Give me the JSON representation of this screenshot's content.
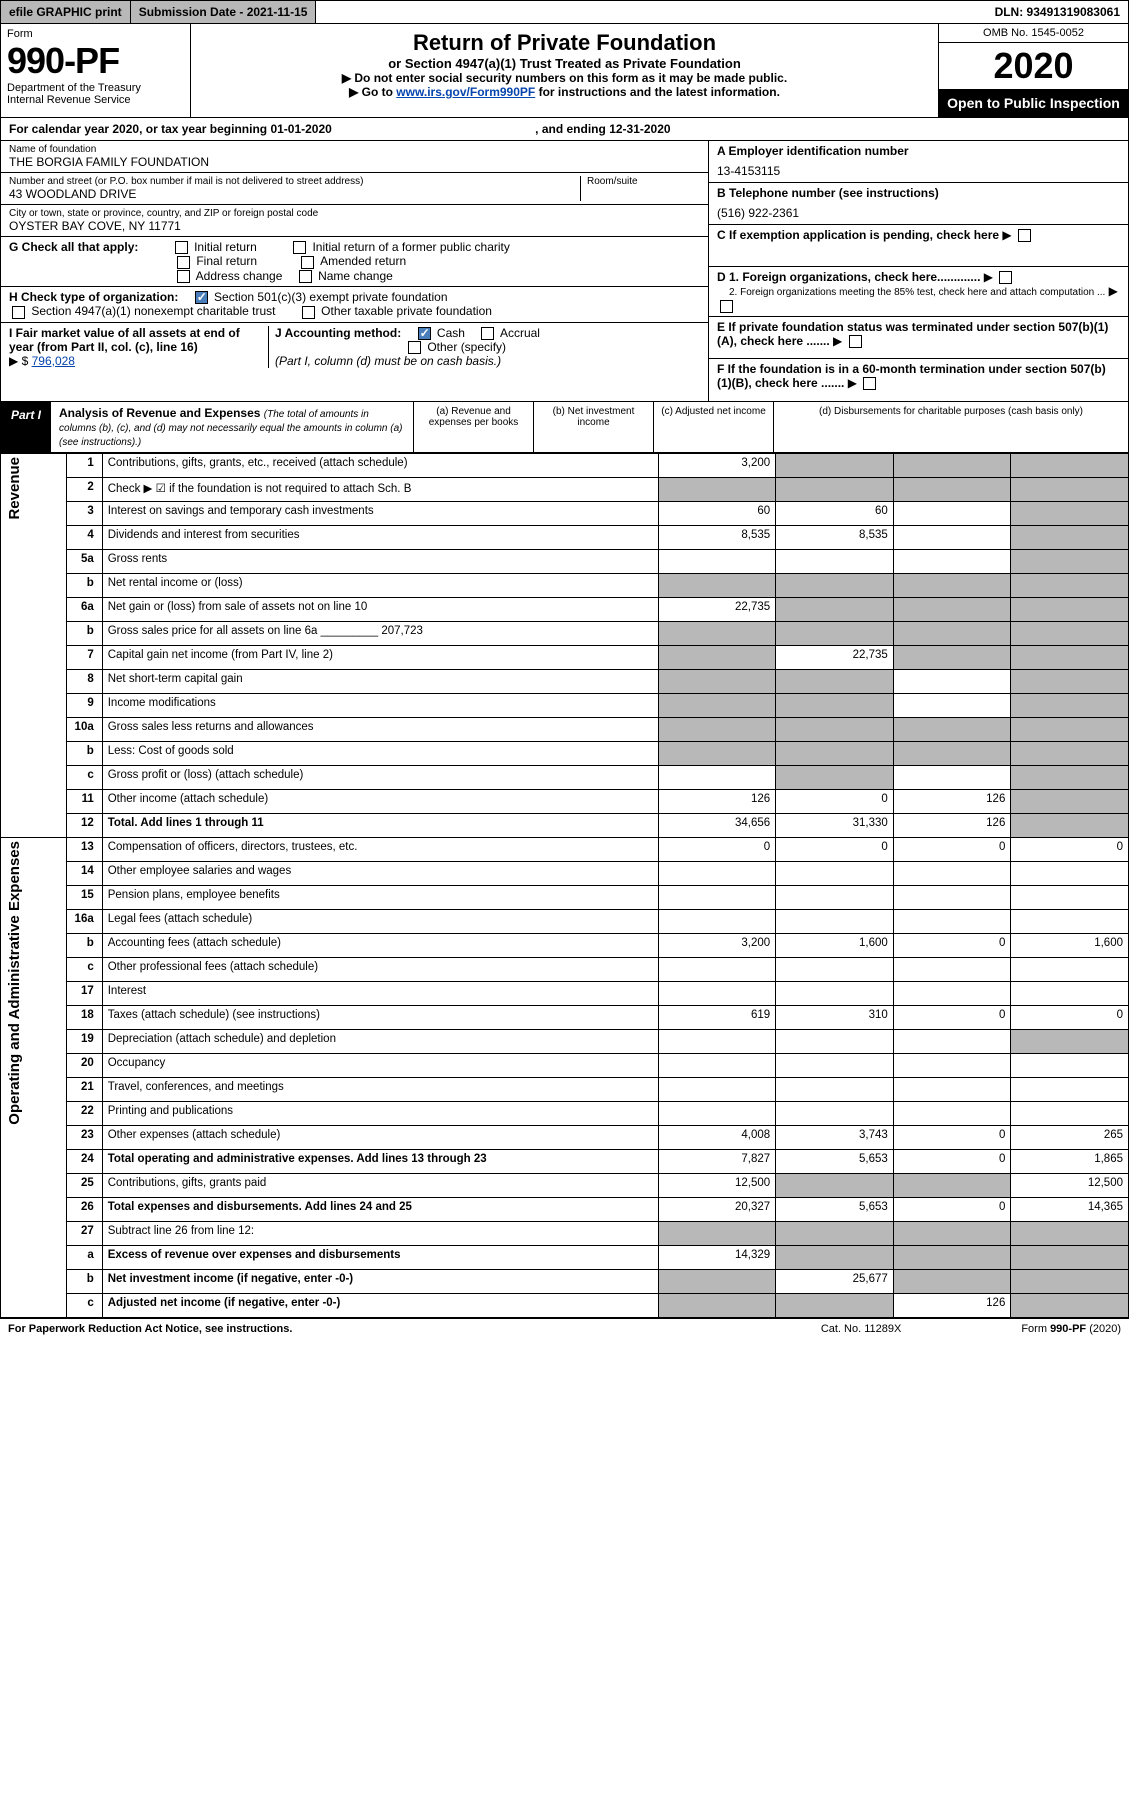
{
  "topbar": {
    "efile": "efile GRAPHIC print",
    "submission": "Submission Date - 2021-11-15",
    "dln": "DLN: 93491319083061"
  },
  "header": {
    "form_word": "Form",
    "form_number": "990-PF",
    "dept": "Department of the Treasury",
    "irs": "Internal Revenue Service",
    "title": "Return of Private Foundation",
    "subtitle": "or Section 4947(a)(1) Trust Treated as Private Foundation",
    "note1": "▶ Do not enter social security numbers on this form as it may be made public.",
    "note2_pre": "▶ Go to ",
    "note2_link": "www.irs.gov/Form990PF",
    "note2_post": " for instructions and the latest information.",
    "omb": "OMB No. 1545-0052",
    "year": "2020",
    "open": "Open to Public Inspection"
  },
  "calyear": {
    "text": "For calendar year 2020, or tax year beginning 01-01-2020",
    "ending_lbl": ", and ending",
    "ending_val": "12-31-2020"
  },
  "id": {
    "name_lbl": "Name of foundation",
    "name_val": "THE BORGIA FAMILY FOUNDATION",
    "addr_lbl": "Number and street (or P.O. box number if mail is not delivered to street address)",
    "addr_val": "43 WOODLAND DRIVE",
    "room_lbl": "Room/suite",
    "city_lbl": "City or town, state or province, country, and ZIP or foreign postal code",
    "city_val": "OYSTER BAY COVE, NY  11771",
    "a_lbl": "A Employer identification number",
    "a_val": "13-4153115",
    "b_lbl": "B Telephone number (see instructions)",
    "b_val": "(516) 922-2361",
    "c_lbl": "C If exemption application is pending, check here",
    "d1": "D 1. Foreign organizations, check here.............",
    "d2": "2. Foreign organizations meeting the 85% test, check here and attach computation ...",
    "e": "E If private foundation status was terminated under section 507(b)(1)(A), check here .......",
    "f": "F If the foundation is in a 60-month termination under section 507(b)(1)(B), check here ......."
  },
  "g": {
    "lbl": "G Check all that apply:",
    "o1": "Initial return",
    "o2": "Final return",
    "o3": "Address change",
    "o4": "Initial return of a former public charity",
    "o5": "Amended return",
    "o6": "Name change"
  },
  "h": {
    "lbl": "H Check type of organization:",
    "o1": "Section 501(c)(3) exempt private foundation",
    "o2": "Section 4947(a)(1) nonexempt charitable trust",
    "o3": "Other taxable private foundation"
  },
  "i": {
    "lbl": "I Fair market value of all assets at end of year (from Part II, col. (c), line 16)",
    "arrow": "▶ $",
    "val": "796,028"
  },
  "j": {
    "lbl": "J Accounting method:",
    "o1": "Cash",
    "o2": "Accrual",
    "o3": "Other (specify)",
    "note": "(Part I, column (d) must be on cash basis.)"
  },
  "part1": {
    "tag": "Part I",
    "title": "Analysis of Revenue and Expenses",
    "note": "(The total of amounts in columns (b), (c), and (d) may not necessarily equal the amounts in column (a) (see instructions).)",
    "col_a": "(a) Revenue and expenses per books",
    "col_b": "(b) Net investment income",
    "col_c": "(c) Adjusted net income",
    "col_d": "(d) Disbursements for charitable purposes (cash basis only)"
  },
  "side": {
    "revenue": "Revenue",
    "expenses": "Operating and Administrative Expenses"
  },
  "rows": [
    {
      "n": "1",
      "lbl": "Contributions, gifts, grants, etc., received (attach schedule)",
      "a": "3,200",
      "b": "",
      "c": "",
      "d": "",
      "shade": [
        "b",
        "c",
        "d"
      ]
    },
    {
      "n": "2",
      "lbl": "Check ▶ ☑ if the foundation is not required to attach Sch. B",
      "a": "",
      "b": "",
      "c": "",
      "d": "",
      "shade": [
        "a",
        "b",
        "c",
        "d"
      ]
    },
    {
      "n": "3",
      "lbl": "Interest on savings and temporary cash investments",
      "a": "60",
      "b": "60",
      "c": "",
      "d": "",
      "shade": [
        "d"
      ]
    },
    {
      "n": "4",
      "lbl": "Dividends and interest from securities",
      "a": "8,535",
      "b": "8,535",
      "c": "",
      "d": "",
      "shade": [
        "d"
      ]
    },
    {
      "n": "5a",
      "lbl": "Gross rents",
      "a": "",
      "b": "",
      "c": "",
      "d": "",
      "shade": [
        "d"
      ]
    },
    {
      "n": "b",
      "lbl": "Net rental income or (loss)",
      "a": "",
      "b": "",
      "c": "",
      "d": "",
      "shade": [
        "a",
        "b",
        "c",
        "d"
      ]
    },
    {
      "n": "6a",
      "lbl": "Net gain or (loss) from sale of assets not on line 10",
      "a": "22,735",
      "b": "",
      "c": "",
      "d": "",
      "shade": [
        "b",
        "c",
        "d"
      ]
    },
    {
      "n": "b",
      "lbl": "Gross sales price for all assets on line 6a _________ 207,723",
      "a": "",
      "b": "",
      "c": "",
      "d": "",
      "shade": [
        "a",
        "b",
        "c",
        "d"
      ]
    },
    {
      "n": "7",
      "lbl": "Capital gain net income (from Part IV, line 2)",
      "a": "",
      "b": "22,735",
      "c": "",
      "d": "",
      "shade": [
        "a",
        "c",
        "d"
      ]
    },
    {
      "n": "8",
      "lbl": "Net short-term capital gain",
      "a": "",
      "b": "",
      "c": "",
      "d": "",
      "shade": [
        "a",
        "b",
        "d"
      ]
    },
    {
      "n": "9",
      "lbl": "Income modifications",
      "a": "",
      "b": "",
      "c": "",
      "d": "",
      "shade": [
        "a",
        "b",
        "d"
      ]
    },
    {
      "n": "10a",
      "lbl": "Gross sales less returns and allowances",
      "a": "",
      "b": "",
      "c": "",
      "d": "",
      "shade": [
        "a",
        "b",
        "c",
        "d"
      ]
    },
    {
      "n": "b",
      "lbl": "Less: Cost of goods sold",
      "a": "",
      "b": "",
      "c": "",
      "d": "",
      "shade": [
        "a",
        "b",
        "c",
        "d"
      ]
    },
    {
      "n": "c",
      "lbl": "Gross profit or (loss) (attach schedule)",
      "a": "",
      "b": "",
      "c": "",
      "d": "",
      "shade": [
        "b",
        "d"
      ]
    },
    {
      "n": "11",
      "lbl": "Other income (attach schedule)",
      "a": "126",
      "b": "0",
      "c": "126",
      "d": "",
      "shade": [
        "d"
      ]
    },
    {
      "n": "12",
      "lbl": "Total. Add lines 1 through 11",
      "a": "34,656",
      "b": "31,330",
      "c": "126",
      "d": "",
      "bold": true,
      "shade": [
        "d"
      ]
    },
    {
      "n": "13",
      "lbl": "Compensation of officers, directors, trustees, etc.",
      "a": "0",
      "b": "0",
      "c": "0",
      "d": "0"
    },
    {
      "n": "14",
      "lbl": "Other employee salaries and wages",
      "a": "",
      "b": "",
      "c": "",
      "d": ""
    },
    {
      "n": "15",
      "lbl": "Pension plans, employee benefits",
      "a": "",
      "b": "",
      "c": "",
      "d": ""
    },
    {
      "n": "16a",
      "lbl": "Legal fees (attach schedule)",
      "a": "",
      "b": "",
      "c": "",
      "d": ""
    },
    {
      "n": "b",
      "lbl": "Accounting fees (attach schedule)",
      "a": "3,200",
      "b": "1,600",
      "c": "0",
      "d": "1,600"
    },
    {
      "n": "c",
      "lbl": "Other professional fees (attach schedule)",
      "a": "",
      "b": "",
      "c": "",
      "d": ""
    },
    {
      "n": "17",
      "lbl": "Interest",
      "a": "",
      "b": "",
      "c": "",
      "d": ""
    },
    {
      "n": "18",
      "lbl": "Taxes (attach schedule) (see instructions)",
      "a": "619",
      "b": "310",
      "c": "0",
      "d": "0"
    },
    {
      "n": "19",
      "lbl": "Depreciation (attach schedule) and depletion",
      "a": "",
      "b": "",
      "c": "",
      "d": "",
      "shade": [
        "d"
      ]
    },
    {
      "n": "20",
      "lbl": "Occupancy",
      "a": "",
      "b": "",
      "c": "",
      "d": ""
    },
    {
      "n": "21",
      "lbl": "Travel, conferences, and meetings",
      "a": "",
      "b": "",
      "c": "",
      "d": ""
    },
    {
      "n": "22",
      "lbl": "Printing and publications",
      "a": "",
      "b": "",
      "c": "",
      "d": ""
    },
    {
      "n": "23",
      "lbl": "Other expenses (attach schedule)",
      "a": "4,008",
      "b": "3,743",
      "c": "0",
      "d": "265"
    },
    {
      "n": "24",
      "lbl": "Total operating and administrative expenses. Add lines 13 through 23",
      "a": "7,827",
      "b": "5,653",
      "c": "0",
      "d": "1,865",
      "bold": true
    },
    {
      "n": "25",
      "lbl": "Contributions, gifts, grants paid",
      "a": "12,500",
      "b": "",
      "c": "",
      "d": "12,500",
      "shade": [
        "b",
        "c"
      ]
    },
    {
      "n": "26",
      "lbl": "Total expenses and disbursements. Add lines 24 and 25",
      "a": "20,327",
      "b": "5,653",
      "c": "0",
      "d": "14,365",
      "bold": true
    },
    {
      "n": "27",
      "lbl": "Subtract line 26 from line 12:",
      "a": "",
      "b": "",
      "c": "",
      "d": "",
      "shade": [
        "a",
        "b",
        "c",
        "d"
      ]
    },
    {
      "n": "a",
      "lbl": "Excess of revenue over expenses and disbursements",
      "a": "14,329",
      "b": "",
      "c": "",
      "d": "",
      "bold": true,
      "shade": [
        "b",
        "c",
        "d"
      ]
    },
    {
      "n": "b",
      "lbl": "Net investment income (if negative, enter -0-)",
      "a": "",
      "b": "25,677",
      "c": "",
      "d": "",
      "bold": true,
      "shade": [
        "a",
        "c",
        "d"
      ]
    },
    {
      "n": "c",
      "lbl": "Adjusted net income (if negative, enter -0-)",
      "a": "",
      "b": "",
      "c": "126",
      "d": "",
      "bold": true,
      "shade": [
        "a",
        "b",
        "d"
      ]
    }
  ],
  "footer": {
    "left": "For Paperwork Reduction Act Notice, see instructions.",
    "mid": "Cat. No. 11289X",
    "right": "Form 990-PF (2020)"
  }
}
